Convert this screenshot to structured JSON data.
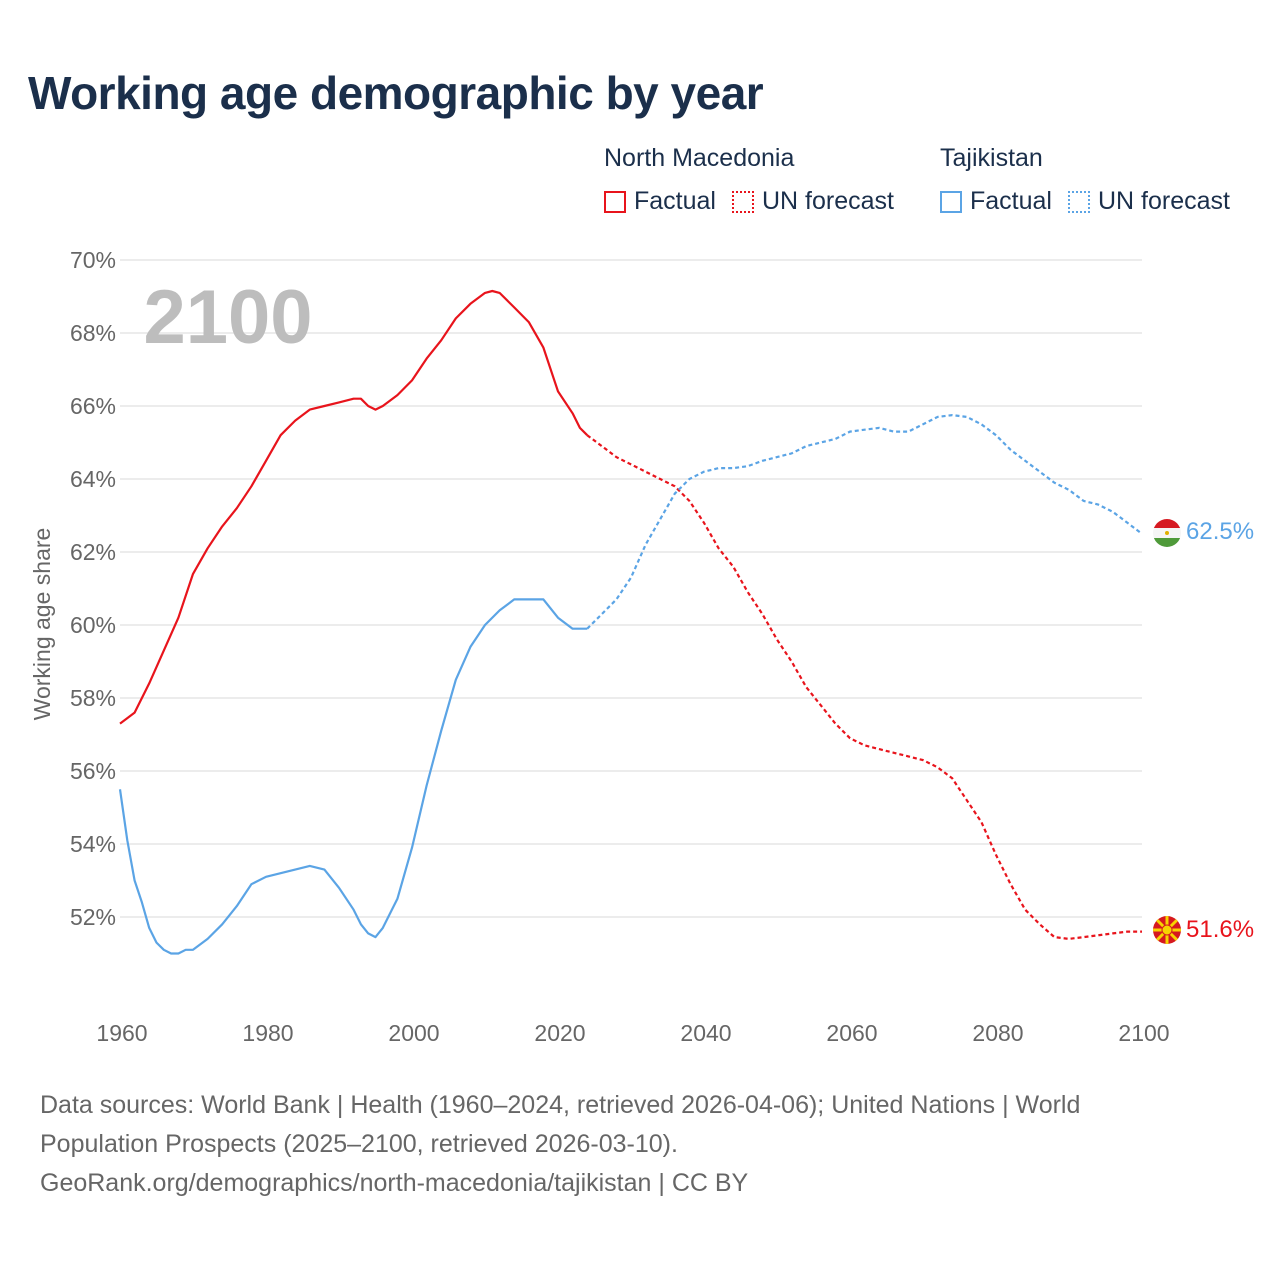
{
  "title": "Working age demographic by year",
  "legend": {
    "factual_label": "Factual",
    "forecast_label": "UN forecast",
    "groups": [
      {
        "country": "North Macedonia",
        "color": "#e8141c"
      },
      {
        "country": "Tajikistan",
        "color": "#5ba4e5"
      }
    ]
  },
  "year_overlay": "2100",
  "source": {
    "line1": "Data sources: World Bank | Health (1960–2024, retrieved 2026-04-06); United Nations | World",
    "line2": "Population Prospects (2025–2100, retrieved 2026-03-10).",
    "line3": "GeoRank.org/demographics/north-macedonia/tajikistan | CC BY"
  },
  "chart_data": {
    "type": "line",
    "title": "Working age demographic by year",
    "xlabel": "",
    "ylabel": "Working age share",
    "xlim": [
      1960,
      2100
    ],
    "ylim": [
      50,
      70
    ],
    "x_ticks": [
      1960,
      1980,
      2000,
      2020,
      2040,
      2060,
      2080,
      2100
    ],
    "y_ticks": [
      52,
      54,
      56,
      58,
      60,
      62,
      64,
      66,
      68,
      70
    ],
    "y_tick_labels": [
      "52%",
      "54%",
      "56%",
      "58%",
      "60%",
      "62%",
      "64%",
      "66%",
      "68%",
      "70%"
    ],
    "forecast_start": 2024,
    "grid": true,
    "series": [
      {
        "name": "North Macedonia",
        "color": "#e8141c",
        "end_label": "51.6%",
        "flag": "north-macedonia-flag",
        "points": [
          [
            1960,
            57.3
          ],
          [
            1962,
            57.6
          ],
          [
            1964,
            58.4
          ],
          [
            1966,
            59.3
          ],
          [
            1968,
            60.2
          ],
          [
            1970,
            61.4
          ],
          [
            1972,
            62.1
          ],
          [
            1974,
            62.7
          ],
          [
            1976,
            63.2
          ],
          [
            1978,
            63.8
          ],
          [
            1980,
            64.5
          ],
          [
            1982,
            65.2
          ],
          [
            1984,
            65.6
          ],
          [
            1986,
            65.9
          ],
          [
            1988,
            66.0
          ],
          [
            1990,
            66.1
          ],
          [
            1992,
            66.2
          ],
          [
            1993,
            66.2
          ],
          [
            1994,
            66.0
          ],
          [
            1995,
            65.9
          ],
          [
            1996,
            66.0
          ],
          [
            1998,
            66.3
          ],
          [
            2000,
            66.7
          ],
          [
            2002,
            67.3
          ],
          [
            2004,
            67.8
          ],
          [
            2006,
            68.4
          ],
          [
            2008,
            68.8
          ],
          [
            2010,
            69.1
          ],
          [
            2011,
            69.15
          ],
          [
            2012,
            69.1
          ],
          [
            2014,
            68.7
          ],
          [
            2016,
            68.3
          ],
          [
            2018,
            67.6
          ],
          [
            2020,
            66.4
          ],
          [
            2022,
            65.8
          ],
          [
            2023,
            65.4
          ],
          [
            2024,
            65.2
          ],
          [
            2026,
            64.9
          ],
          [
            2028,
            64.6
          ],
          [
            2030,
            64.4
          ],
          [
            2032,
            64.2
          ],
          [
            2034,
            64.0
          ],
          [
            2036,
            63.8
          ],
          [
            2038,
            63.4
          ],
          [
            2040,
            62.8
          ],
          [
            2042,
            62.1
          ],
          [
            2044,
            61.6
          ],
          [
            2046,
            60.9
          ],
          [
            2048,
            60.3
          ],
          [
            2050,
            59.6
          ],
          [
            2052,
            59.0
          ],
          [
            2054,
            58.3
          ],
          [
            2056,
            57.8
          ],
          [
            2058,
            57.3
          ],
          [
            2060,
            56.9
          ],
          [
            2062,
            56.7
          ],
          [
            2064,
            56.6
          ],
          [
            2066,
            56.5
          ],
          [
            2068,
            56.4
          ],
          [
            2070,
            56.3
          ],
          [
            2072,
            56.1
          ],
          [
            2074,
            55.8
          ],
          [
            2076,
            55.2
          ],
          [
            2078,
            54.6
          ],
          [
            2080,
            53.7
          ],
          [
            2082,
            52.9
          ],
          [
            2084,
            52.2
          ],
          [
            2086,
            51.8
          ],
          [
            2088,
            51.45
          ],
          [
            2090,
            51.4
          ],
          [
            2092,
            51.45
          ],
          [
            2094,
            51.5
          ],
          [
            2096,
            51.55
          ],
          [
            2098,
            51.6
          ],
          [
            2100,
            51.6
          ]
        ]
      },
      {
        "name": "Tajikistan",
        "color": "#5ba4e5",
        "end_label": "62.5%",
        "flag": "tajikistan-flag",
        "points": [
          [
            1960,
            55.5
          ],
          [
            1961,
            54.1
          ],
          [
            1962,
            53.0
          ],
          [
            1963,
            52.4
          ],
          [
            1964,
            51.7
          ],
          [
            1965,
            51.3
          ],
          [
            1966,
            51.1
          ],
          [
            1967,
            51.0
          ],
          [
            1968,
            51.0
          ],
          [
            1969,
            51.1
          ],
          [
            1970,
            51.1
          ],
          [
            1972,
            51.4
          ],
          [
            1974,
            51.8
          ],
          [
            1976,
            52.3
          ],
          [
            1978,
            52.9
          ],
          [
            1980,
            53.1
          ],
          [
            1982,
            53.2
          ],
          [
            1984,
            53.3
          ],
          [
            1986,
            53.4
          ],
          [
            1988,
            53.3
          ],
          [
            1990,
            52.8
          ],
          [
            1992,
            52.2
          ],
          [
            1993,
            51.8
          ],
          [
            1994,
            51.55
          ],
          [
            1995,
            51.45
          ],
          [
            1996,
            51.7
          ],
          [
            1998,
            52.5
          ],
          [
            2000,
            53.9
          ],
          [
            2002,
            55.6
          ],
          [
            2004,
            57.1
          ],
          [
            2006,
            58.5
          ],
          [
            2008,
            59.4
          ],
          [
            2010,
            60.0
          ],
          [
            2012,
            60.4
          ],
          [
            2014,
            60.7
          ],
          [
            2016,
            60.7
          ],
          [
            2018,
            60.7
          ],
          [
            2020,
            60.2
          ],
          [
            2022,
            59.9
          ],
          [
            2023,
            59.9
          ],
          [
            2024,
            59.9
          ],
          [
            2026,
            60.3
          ],
          [
            2028,
            60.7
          ],
          [
            2030,
            61.3
          ],
          [
            2032,
            62.2
          ],
          [
            2034,
            62.9
          ],
          [
            2036,
            63.6
          ],
          [
            2038,
            64.0
          ],
          [
            2040,
            64.2
          ],
          [
            2042,
            64.3
          ],
          [
            2044,
            64.3
          ],
          [
            2046,
            64.35
          ],
          [
            2048,
            64.5
          ],
          [
            2050,
            64.6
          ],
          [
            2052,
            64.7
          ],
          [
            2054,
            64.9
          ],
          [
            2056,
            65.0
          ],
          [
            2058,
            65.1
          ],
          [
            2060,
            65.3
          ],
          [
            2062,
            65.35
          ],
          [
            2064,
            65.4
          ],
          [
            2066,
            65.3
          ],
          [
            2068,
            65.3
          ],
          [
            2070,
            65.5
          ],
          [
            2072,
            65.7
          ],
          [
            2074,
            65.75
          ],
          [
            2076,
            65.7
          ],
          [
            2078,
            65.5
          ],
          [
            2080,
            65.2
          ],
          [
            2082,
            64.8
          ],
          [
            2084,
            64.5
          ],
          [
            2086,
            64.2
          ],
          [
            2088,
            63.9
          ],
          [
            2090,
            63.7
          ],
          [
            2092,
            63.4
          ],
          [
            2094,
            63.3
          ],
          [
            2096,
            63.1
          ],
          [
            2098,
            62.8
          ],
          [
            2100,
            62.5
          ]
        ]
      }
    ]
  }
}
